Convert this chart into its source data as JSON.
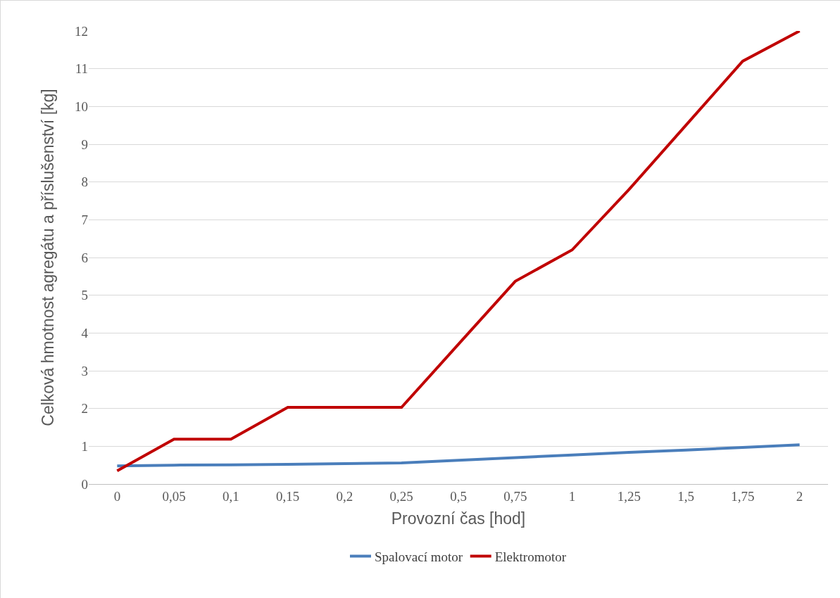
{
  "chart_data": {
    "type": "line",
    "xlabel": "Provozní čas [hod]",
    "ylabel": "Celková hmotnost agregátu a příslušenství [kg]",
    "categories": [
      "0",
      "0,05",
      "0,1",
      "0,15",
      "0,2",
      "0,25",
      "0,5",
      "0,75",
      "1",
      "1,25",
      "1,5",
      "1,75",
      "2"
    ],
    "series": [
      {
        "name": "Spalovací motor",
        "color": "#4a7ebb",
        "values": [
          0.48,
          0.5,
          0.51,
          0.52,
          0.54,
          0.56,
          0.63,
          0.7,
          0.77,
          0.84,
          0.9,
          0.97,
          1.04
        ]
      },
      {
        "name": "Elektromotor",
        "color": "#c00000",
        "values": [
          0.35,
          1.19,
          1.19,
          2.03,
          2.03,
          2.03,
          3.7,
          5.37,
          6.2,
          7.8,
          9.5,
          11.2,
          12.0
        ]
      }
    ],
    "ylim": [
      0,
      12
    ],
    "yticks": [
      0,
      1,
      2,
      3,
      4,
      5,
      6,
      7,
      8,
      9,
      10,
      11,
      12
    ],
    "grid": "y",
    "legend": "bottom",
    "marker": "none",
    "line_style": "solid"
  }
}
